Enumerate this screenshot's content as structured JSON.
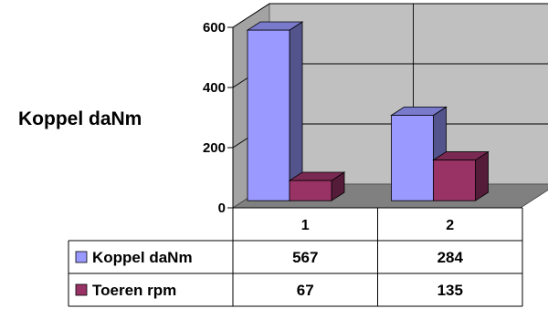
{
  "chart_data": {
    "type": "bar",
    "title": "",
    "ylabel": "Koppel daNm",
    "xlabel": "",
    "categories": [
      "1",
      "2"
    ],
    "ylim": [
      0,
      600
    ],
    "yticks": [
      "0",
      "200",
      "400",
      "600"
    ],
    "grid": true,
    "three_d": true,
    "legend_placement": "data-table-left",
    "series": [
      {
        "name": "Koppel daNm",
        "values": [
          567,
          284
        ],
        "color": "#9999ff"
      },
      {
        "name": "Toeren rpm",
        "values": [
          67,
          135
        ],
        "color": "#993366"
      }
    ],
    "data_table": {
      "rows": [
        {
          "label": "Koppel daNm",
          "cells": [
            "567",
            "284"
          ]
        },
        {
          "label": "Toeren rpm",
          "cells": [
            "67",
            "135"
          ]
        }
      ]
    },
    "colors": {
      "wall": "#c0c0c0",
      "floor": "#808080",
      "gridline": "#000000"
    }
  }
}
